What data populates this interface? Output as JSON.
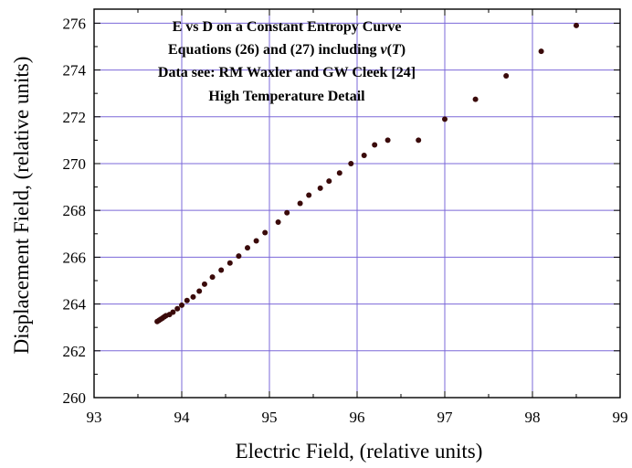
{
  "chart_data": {
    "type": "scatter",
    "title_lines": [
      "E vs D on a Constant Entropy Curve",
      "Equations (26) and (27) including v(T)",
      "Data see: RM Waxler and GW Cleek [24]",
      "High Temperature Detail"
    ],
    "xlabel": "Electric Field, (relative units)",
    "ylabel": "Displacement Field, (relative units)",
    "xlim": [
      93,
      99
    ],
    "ylim": [
      260,
      276.6
    ],
    "xticks": [
      93,
      94,
      95,
      96,
      97,
      98,
      99
    ],
    "yticks": [
      260,
      262,
      264,
      266,
      268,
      270,
      272,
      274,
      276
    ],
    "xtick_labels": [
      "93",
      "94",
      "95",
      "96",
      "97",
      "98",
      "99"
    ],
    "ytick_labels": [
      "260",
      "262",
      "264",
      "266",
      "268",
      "270",
      "272",
      "274",
      "276"
    ],
    "grid": true,
    "marker_color": "#3a0a0a",
    "grid_color": "#7b68d8",
    "x": [
      93.72,
      93.74,
      93.76,
      93.78,
      93.8,
      93.82,
      93.86,
      93.9,
      93.95,
      94.0,
      94.06,
      94.13,
      94.2,
      94.26,
      94.35,
      94.45,
      94.55,
      94.65,
      94.75,
      94.85,
      94.95,
      95.1,
      95.2,
      95.35,
      95.45,
      95.58,
      95.68,
      95.8,
      95.93,
      96.08,
      96.2,
      96.35,
      96.7,
      97.0,
      97.35,
      97.7,
      98.1,
      98.5
    ],
    "y": [
      263.25,
      263.3,
      263.35,
      263.4,
      263.45,
      263.5,
      263.55,
      263.65,
      263.8,
      263.95,
      264.15,
      264.3,
      264.55,
      264.85,
      265.15,
      265.45,
      265.75,
      266.05,
      266.4,
      266.7,
      267.05,
      267.5,
      267.9,
      268.3,
      268.65,
      268.95,
      269.25,
      269.6,
      270.0,
      270.35,
      270.8,
      271.0,
      271.0,
      271.9,
      272.75,
      273.75,
      274.8,
      275.9
    ]
  }
}
